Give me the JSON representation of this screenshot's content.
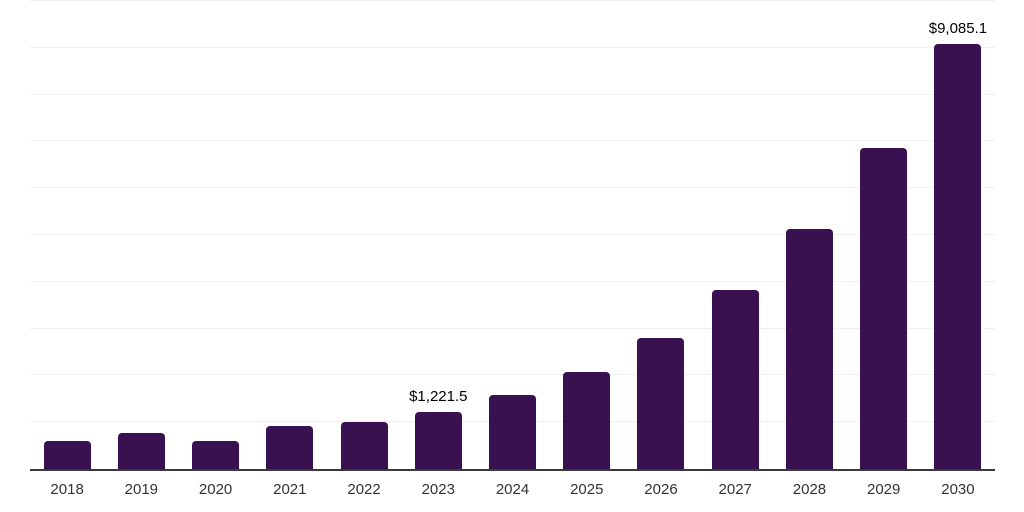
{
  "chart_data": {
    "type": "bar",
    "categories": [
      "2018",
      "2019",
      "2020",
      "2021",
      "2022",
      "2023",
      "2024",
      "2025",
      "2026",
      "2027",
      "2028",
      "2029",
      "2030"
    ],
    "values": [
      590,
      765,
      610,
      930,
      1000,
      1221.5,
      1590,
      2070,
      2790,
      3820,
      5120,
      6855,
      9085.1
    ],
    "point_labels": [
      "",
      "",
      "",
      "",
      "",
      "$1,221.5",
      "",
      "",
      "",
      "",
      "",
      "",
      "$9,085.1"
    ],
    "title": "",
    "xlabel": "",
    "ylabel": "",
    "ylim": [
      0,
      10000
    ],
    "grid_step": 1000,
    "grid": "horizontal-only",
    "legend": "none",
    "y_axis_tick_labels_visible": false,
    "labeled_values_note": "only 2023 and 2030 bars carry visible data labels"
  },
  "colors": {
    "bar": "#3A1150",
    "axis_line": "#3A3A3A",
    "gridline": "#F0F0F1",
    "tick_label": "#333333",
    "data_label": "#000000",
    "background": "#FFFFFF"
  }
}
